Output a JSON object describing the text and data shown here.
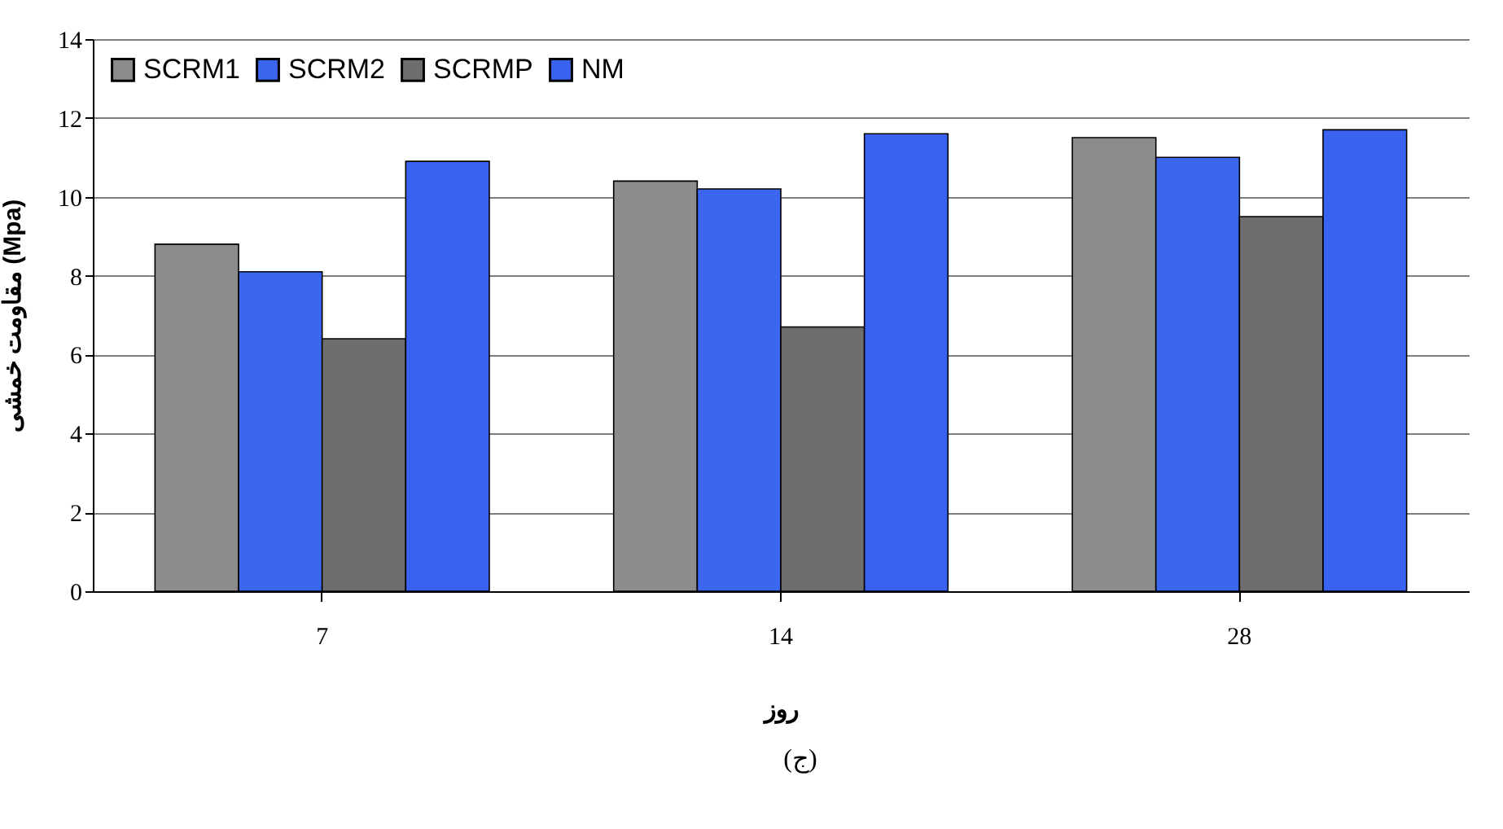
{
  "chart_data": {
    "type": "bar",
    "xlabel": "روز",
    "ylabel": "مقاومت خمشی (Mpa)",
    "categories": [
      "7",
      "14",
      "28"
    ],
    "series": [
      {
        "name": "SCRM1",
        "color": "#8c8c8c",
        "values": [
          8.8,
          10.4,
          11.5
        ]
      },
      {
        "name": "SCRM2",
        "color": "#3a66f0",
        "values": [
          8.1,
          10.2,
          11.0
        ]
      },
      {
        "name": "SCRMP",
        "color": "#6e6e6e",
        "values": [
          6.4,
          6.7,
          9.5
        ]
      },
      {
        "name": "NM",
        "color": "#3a62f0",
        "values": [
          10.9,
          11.6,
          11.7
        ]
      }
    ],
    "ylim": [
      0,
      14
    ],
    "yticks": [
      0,
      2,
      4,
      6,
      8,
      10,
      12,
      14
    ],
    "grid": "y",
    "legend": "top left",
    "annotations": [
      "(ج)"
    ]
  }
}
